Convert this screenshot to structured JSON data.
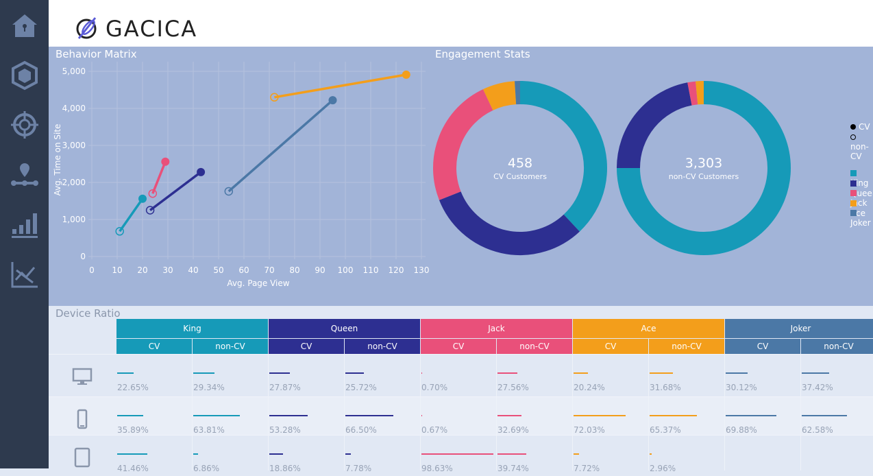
{
  "logo_text": "GACICA",
  "sidebar": {
    "items": [
      {
        "icon": "home-icon"
      },
      {
        "icon": "cube-icon"
      },
      {
        "icon": "target-icon"
      },
      {
        "icon": "map-pin-route-icon"
      },
      {
        "icon": "bar-chart-icon"
      },
      {
        "icon": "trend-chart-icon"
      }
    ]
  },
  "colors": {
    "King": "#169ab8",
    "Queen": "#2d2f91",
    "Jack": "#e9507a",
    "Ace": "#f39e1b",
    "Joker": "#4b78a6"
  },
  "behavior_title": "Behavior Matrix",
  "engagement_title": "Engagement Stats",
  "device_title": "Device Ratio",
  "chart_data": [
    {
      "type": "scatter",
      "title": "Behavior Matrix",
      "xlabel": "Avg. Page View",
      "ylabel": "Avg. Time on Site",
      "xlim": [
        0,
        130
      ],
      "ylim": [
        0,
        5000
      ],
      "xticks": [
        "0",
        "10",
        "20",
        "30",
        "40",
        "50",
        "60",
        "70",
        "80",
        "90",
        "100",
        "110",
        "120",
        "130"
      ],
      "yticks": [
        "0",
        "1,000",
        "2,000",
        "3,000",
        "4,000",
        "5,000"
      ],
      "grid": true,
      "series": [
        {
          "name": "King",
          "cv": [
            20,
            1560
          ],
          "non_cv": [
            11,
            680
          ]
        },
        {
          "name": "Queen",
          "cv": [
            43,
            2280
          ],
          "non_cv": [
            23,
            1250
          ]
        },
        {
          "name": "Jack",
          "cv": [
            29,
            2560
          ],
          "non_cv": [
            24,
            1700
          ]
        },
        {
          "name": "Ace",
          "cv": [
            124,
            4910
          ],
          "non_cv": [
            72,
            4300
          ]
        },
        {
          "name": "Joker",
          "cv": [
            95,
            4220
          ],
          "non_cv": [
            54,
            1760
          ]
        }
      ]
    },
    {
      "type": "pie",
      "title": "Engagement Stats",
      "legend": "right",
      "donuts": [
        {
          "value": "458",
          "label": "CV Customers",
          "shares": {
            "King": 0.38,
            "Queen": 0.31,
            "Jack": 0.24,
            "Ace": 0.06,
            "Joker": 0.01
          }
        },
        {
          "value": "3,303",
          "label": "non-CV Customers",
          "shares": {
            "King": 0.75,
            "Queen": 0.22,
            "Jack": 0.015,
            "Ace": 0.015,
            "Joker": 0
          }
        }
      ]
    }
  ],
  "legend_markers": [
    "CV",
    "non-CV"
  ],
  "legend_cats": [
    "King",
    "Queen",
    "Jack",
    "Ace",
    "Joker"
  ],
  "table": {
    "groups": [
      "King",
      "Queen",
      "Jack",
      "Ace",
      "Joker"
    ],
    "sub": [
      "CV",
      "non-CV"
    ],
    "rows": [
      {
        "device": "desktop-icon",
        "values": [
          "22.65%",
          "29.34%",
          "27.87%",
          "25.72%",
          "0.70%",
          "27.56%",
          "20.24%",
          "31.68%",
          "30.12%",
          "37.42%"
        ]
      },
      {
        "device": "smartphone-icon",
        "values": [
          "35.89%",
          "63.81%",
          "53.28%",
          "66.50%",
          "0.67%",
          "32.69%",
          "72.03%",
          "65.37%",
          "69.88%",
          "62.58%"
        ]
      },
      {
        "device": "tablet-icon",
        "values": [
          "41.46%",
          "6.86%",
          "18.86%",
          "7.78%",
          "98.63%",
          "39.74%",
          "7.72%",
          "2.96%",
          "",
          ""
        ]
      }
    ]
  }
}
